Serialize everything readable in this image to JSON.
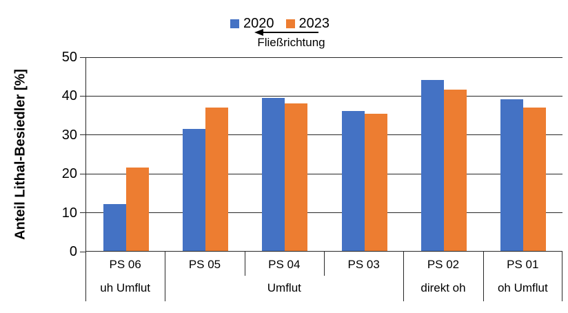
{
  "legend": {
    "items": [
      {
        "label": "2020",
        "color": "#4472C4"
      },
      {
        "label": "2023",
        "color": "#ED7D31"
      }
    ],
    "flow_label": "Fließrichtung"
  },
  "y_axis": {
    "title": "Anteil Lithal-Besiedler [%]",
    "ticks": [
      0,
      10,
      20,
      30,
      40,
      50
    ]
  },
  "chart_data": {
    "type": "bar",
    "title": "",
    "categories": [
      "PS 06",
      "PS 05",
      "PS 04",
      "PS 03",
      "PS 02",
      "PS 01"
    ],
    "group_labels": [
      {
        "label": "uh Umflut",
        "span": [
          0,
          1
        ]
      },
      {
        "label": "Umflut",
        "span": [
          1,
          4
        ]
      },
      {
        "label": "direkt oh",
        "span": [
          4,
          5
        ]
      },
      {
        "label": "oh Umflut",
        "span": [
          5,
          6
        ]
      }
    ],
    "series": [
      {
        "name": "2020",
        "color": "#4472C4",
        "values": [
          12.0,
          31.4,
          39.3,
          36.0,
          44.0,
          39.0
        ]
      },
      {
        "name": "2023",
        "color": "#ED7D31",
        "values": [
          21.5,
          36.8,
          37.9,
          35.2,
          41.5,
          36.8
        ]
      }
    ],
    "xlabel": "",
    "ylabel": "Anteil Lithal-Besiedler [%]",
    "ylim": [
      0,
      50
    ],
    "grid": true,
    "legend_position": "top-center",
    "annotations": [
      "Fließrichtung (arrow pointing left / upstream direction)"
    ]
  }
}
